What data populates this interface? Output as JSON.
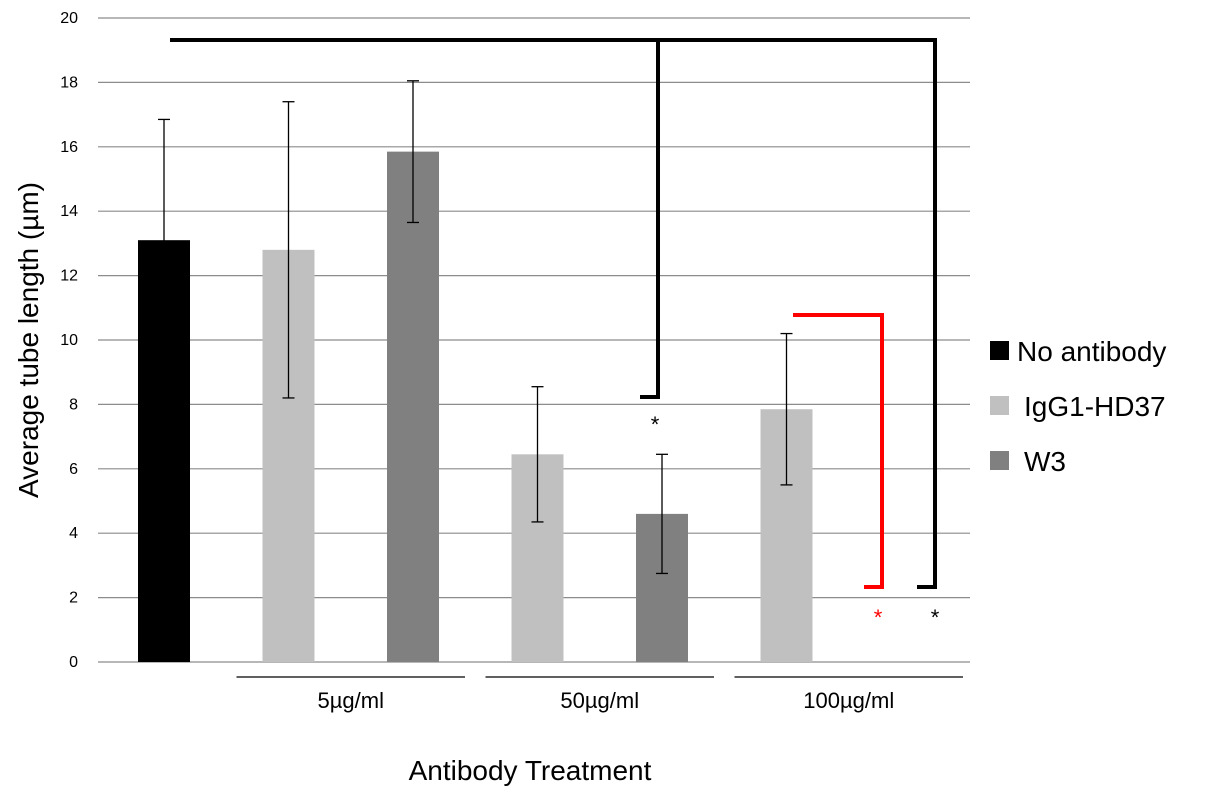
{
  "chart_data": {
    "type": "bar",
    "xlabel": "Antibody Treatment",
    "ylabel": "Average tube length (µm)",
    "ylim": [
      0,
      20
    ],
    "yticks": [
      0,
      2,
      4,
      6,
      8,
      10,
      12,
      14,
      16,
      18,
      20
    ],
    "grid": true,
    "legend_position": "right",
    "groups": [
      "5µg/ml",
      "50µg/ml",
      "100µg/ml"
    ],
    "legend": [
      {
        "name": "No antibody",
        "color": "#000000"
      },
      {
        "name": "IgG1-HD37",
        "color": "#c0c0c0"
      },
      {
        "name": "W3",
        "color": "#808080"
      }
    ],
    "bars": [
      {
        "series": "No antibody",
        "group": "",
        "value": 13.1,
        "error": 3.75,
        "color": "#000000"
      },
      {
        "series": "IgG1-HD37",
        "group": "5µg/ml",
        "value": 12.8,
        "error": 4.6,
        "color": "#c0c0c0"
      },
      {
        "series": "W3",
        "group": "5µg/ml",
        "value": 15.85,
        "error": 2.2,
        "color": "#808080"
      },
      {
        "series": "IgG1-HD37",
        "group": "50µg/ml",
        "value": 6.45,
        "error": 2.1,
        "color": "#c0c0c0"
      },
      {
        "series": "W3",
        "group": "50µg/ml",
        "value": 4.6,
        "error": 1.85,
        "color": "#808080"
      },
      {
        "series": "IgG1-HD37",
        "group": "100µg/ml",
        "value": 7.85,
        "error": 2.35,
        "color": "#c0c0c0"
      },
      {
        "series": "W3",
        "group": "100µg/ml",
        "value": 0,
        "error": 0,
        "color": "#808080"
      }
    ],
    "significance": [
      {
        "from_bar": 0,
        "to_bar": 4,
        "label": "*",
        "color": "#000000"
      },
      {
        "from_bar": 5,
        "to_bar": 6,
        "label": "*",
        "color": "#ff0000"
      },
      {
        "from_bar": 0,
        "to_bar": 6,
        "label": "*",
        "color": "#000000"
      }
    ]
  }
}
